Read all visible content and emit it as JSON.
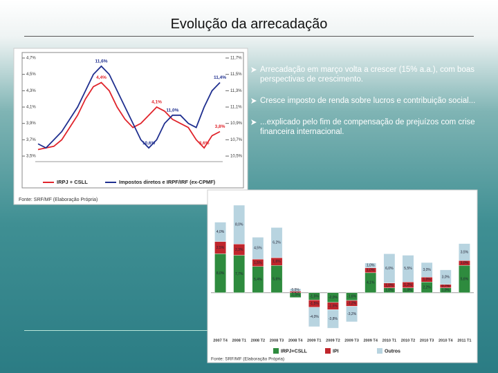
{
  "title": "Evolução da arrecadação",
  "bullets": [
    "Arrecadação em março volta a crescer (15% a.a.), com boas perspectivas de crescimento.",
    "Cresce imposto de renda sobre lucros e contribuição social...",
    "...explicado pelo fim de compensação de prejuízos com crise financeira internacional."
  ],
  "chart_data": [
    {
      "type": "line",
      "categories": [
        null,
        null,
        null,
        null,
        null,
        null,
        null,
        null,
        null,
        null,
        null,
        null,
        null,
        null,
        null,
        null,
        null,
        null,
        null,
        null,
        null,
        null,
        null,
        null
      ],
      "series": [
        {
          "name": "IRPJ + CSLL",
          "color": "#e0242b",
          "values": [
            3.58,
            3.6,
            3.62,
            3.7,
            3.85,
            4.0,
            4.2,
            4.35,
            4.4,
            4.3,
            4.1,
            3.95,
            3.85,
            3.9,
            4.0,
            4.1,
            4.05,
            3.95,
            3.9,
            3.85,
            3.7,
            3.6,
            3.75,
            3.8
          ],
          "value_labels": [
            null,
            null,
            null,
            null,
            null,
            null,
            null,
            null,
            "4,4%",
            null,
            null,
            null,
            null,
            null,
            null,
            "4,1%",
            null,
            null,
            null,
            null,
            null,
            "3,6%",
            null,
            "3,8%"
          ]
        },
        {
          "name": "Impostos diretos e IRPF/IRF (ex-CPMF)",
          "color": "#1f2f8f",
          "axis": "y2",
          "values": [
            10.65,
            10.6,
            10.7,
            10.8,
            10.95,
            11.1,
            11.3,
            11.5,
            11.6,
            11.5,
            11.3,
            11.1,
            10.9,
            10.7,
            10.6,
            10.7,
            10.9,
            11.0,
            11.0,
            10.9,
            10.85,
            11.1,
            11.3,
            11.4
          ],
          "value_labels": [
            null,
            null,
            null,
            null,
            null,
            null,
            null,
            null,
            "11,6%",
            null,
            null,
            null,
            null,
            null,
            "10,6%",
            null,
            null,
            "11,0%",
            null,
            null,
            null,
            null,
            null,
            "11,4%"
          ]
        }
      ],
      "ylim": [
        3.5,
        4.7
      ],
      "yticks": [
        {
          "value": 3.5,
          "label": "3,5%"
        },
        {
          "value": 3.7,
          "label": "3,7%"
        },
        {
          "value": 3.9,
          "label": "3,9%"
        },
        {
          "value": 4.1,
          "label": "4,1%"
        },
        {
          "value": 4.3,
          "label": "4,3%"
        },
        {
          "value": 4.5,
          "label": "4,5%"
        },
        {
          "value": 4.7,
          "label": "4,7%"
        }
      ],
      "y2lim": [
        10.5,
        11.7
      ],
      "y2ticks": [
        {
          "value": 10.5,
          "label": "10,5%"
        },
        {
          "value": 10.7,
          "label": "10,7%"
        },
        {
          "value": 10.9,
          "label": "10,9%"
        },
        {
          "value": 11.1,
          "label": "11,1%"
        },
        {
          "value": 11.3,
          "label": "11,3%"
        },
        {
          "value": 11.5,
          "label": "11,5%"
        },
        {
          "value": 11.7,
          "label": "11,7%"
        }
      ],
      "source": "Fonte: SRF/MF (Elaboração Própria)"
    },
    {
      "type": "bar",
      "categories": [
        "2007 T4",
        "2008 T1",
        "2008 T2",
        "2008 T3",
        "2008 T4",
        "2009 T1",
        "2009 T2",
        "2009 T3",
        "2009 T4",
        "2010 T1",
        "2010 T2",
        "2010 T3",
        "2010 T4",
        "2011 T1"
      ],
      "series": [
        {
          "name": "IRPJ+CSLL",
          "color": "#2e8b3e",
          "values": [
            8.0,
            7.7,
            5.4,
            5.6,
            -1.0,
            -1.5,
            -2.0,
            -1.6,
            4.1,
            1.0,
            1.0,
            2.2,
            1.0,
            5.6
          ],
          "value_labels": [
            "8,0%",
            "7,7%",
            "5,4%",
            "5,6%",
            "-1,0%",
            "-1,5%",
            "-2,0%",
            "-1,6%",
            "4,1%",
            "1,0%",
            "1,0%",
            "2,2%",
            "1,0%",
            "5,6%"
          ]
        },
        {
          "name": "IPI",
          "color": "#c0262c",
          "values": [
            2.5,
            2.3,
            1.5,
            1.6,
            0.3,
            -1.5,
            -1.5,
            -1.2,
            1.0,
            1.0,
            1.2,
            1.0,
            0.7,
            1.0
          ],
          "value_labels": [
            "2,5%",
            "2,3%",
            "1,5%",
            "1,6%",
            "0,3%",
            "-1,5%",
            "-1,5%",
            "-1,2%",
            "1,0%",
            "1,0%",
            "1,2%",
            "1,0%",
            "0,7%",
            "1,0%"
          ]
        },
        {
          "name": "Outros",
          "color": "#b8d4e0",
          "values": [
            4.0,
            8.0,
            4.5,
            6.2,
            0.5,
            -4.0,
            -3.8,
            -3.2,
            1.0,
            6.0,
            5.5,
            3.0,
            3.0,
            3.5
          ],
          "value_labels": [
            "4,0%",
            "8,0%",
            "4,5%",
            "6,2%",
            "0,5%",
            "-4,0%",
            "-3,8%",
            "-3,2%",
            "1,0%",
            "6,0%",
            "5,5%",
            "3,0%",
            "3,0%",
            "3,5%"
          ]
        }
      ],
      "ylim": [
        -8,
        19
      ],
      "source": "Fonte: SRF/MF (Elaboração Própria)"
    }
  ]
}
